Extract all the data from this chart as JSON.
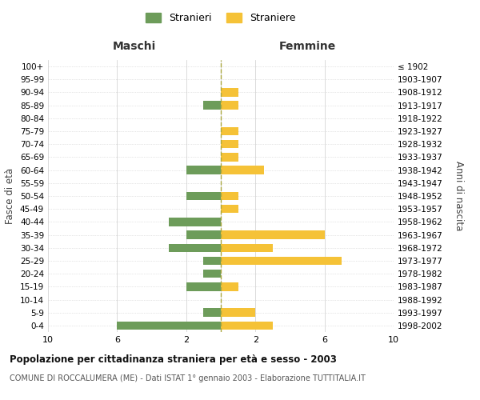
{
  "age_groups": [
    "0-4",
    "5-9",
    "10-14",
    "15-19",
    "20-24",
    "25-29",
    "30-34",
    "35-39",
    "40-44",
    "45-49",
    "50-54",
    "55-59",
    "60-64",
    "65-69",
    "70-74",
    "75-79",
    "80-84",
    "85-89",
    "90-94",
    "95-99",
    "100+"
  ],
  "birth_years": [
    "1998-2002",
    "1993-1997",
    "1988-1992",
    "1983-1987",
    "1978-1982",
    "1973-1977",
    "1968-1972",
    "1963-1967",
    "1958-1962",
    "1953-1957",
    "1948-1952",
    "1943-1947",
    "1938-1942",
    "1933-1937",
    "1928-1932",
    "1923-1927",
    "1918-1922",
    "1913-1917",
    "1908-1912",
    "1903-1907",
    "≤ 1902"
  ],
  "maschi": [
    6,
    1,
    0,
    2,
    1,
    1,
    3,
    2,
    3,
    0,
    2,
    0,
    2,
    0,
    0,
    0,
    0,
    1,
    0,
    0,
    0
  ],
  "femmine": [
    3,
    2,
    0,
    1,
    0,
    7,
    3,
    6,
    0,
    1,
    1,
    0,
    2.5,
    1,
    1,
    1,
    0,
    1,
    1,
    0,
    0
  ],
  "color_maschi": "#6d9c5a",
  "color_femmine": "#f5c237",
  "xlim": 10,
  "xlabel_maschi": "Maschi",
  "xlabel_femmine": "Femmine",
  "ylabel_left": "Fasce di età",
  "ylabel_right": "Anni di nascita",
  "title": "Popolazione per cittadinanza straniera per età e sesso - 2003",
  "subtitle": "COMUNE DI ROCCALUMERA (ME) - Dati ISTAT 1° gennaio 2003 - Elaborazione TUTTITALIA.IT",
  "legend_maschi": "Stranieri",
  "legend_femmine": "Straniere",
  "background_color": "#ffffff",
  "grid_color": "#cccccc",
  "dashed_line_color": "#aaa840"
}
